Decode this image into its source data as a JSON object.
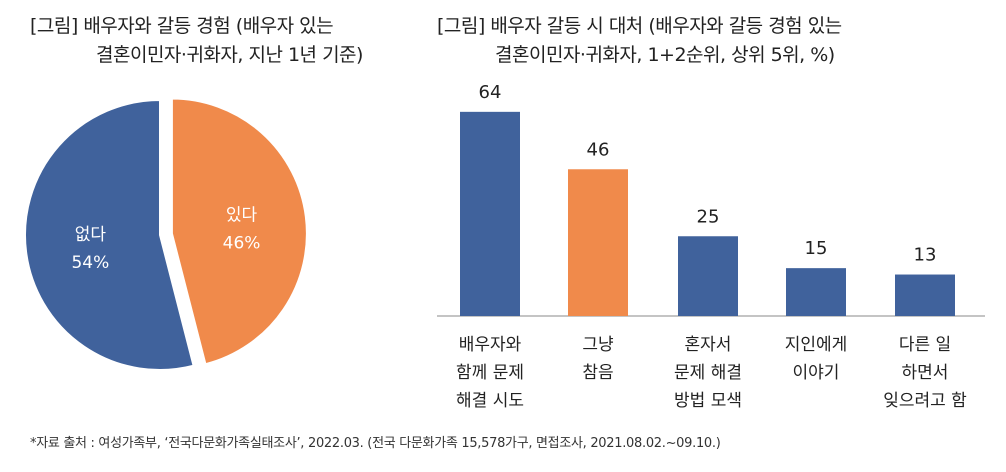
{
  "colors": {
    "blue": "#40629c",
    "orange": "#f08a4b",
    "axis": "#888888"
  },
  "chart_data": [
    {
      "type": "pie",
      "title_lines": [
        "[그림] 배우자와 갈등 경험 (배우자 있는",
        "결혼이민자·귀화자, 지난 1년 기준)"
      ],
      "slices": [
        {
          "label": "있다",
          "value": 46,
          "value_label": "46%",
          "color": "#f08a4b",
          "exploded": true
        },
        {
          "label": "없다",
          "value": 54,
          "value_label": "54%",
          "color": "#40629c"
        }
      ]
    },
    {
      "type": "bar",
      "title_lines": [
        "[그림] 배우자 갈등 시 대처 (배우자와 갈등 경험 있는",
        "결혼이민자·귀화자, 1+2순위, 상위 5위, %)"
      ],
      "categories": [
        [
          "배우자와",
          "함께 문제",
          "해결 시도"
        ],
        [
          "그냥",
          "참음"
        ],
        [
          "혼자서",
          "문제 해결",
          "방법 모색"
        ],
        [
          "지인에게",
          "이야기"
        ],
        [
          "다른 일",
          "하면서",
          "잊으려고 함"
        ]
      ],
      "values": [
        64,
        46,
        25,
        15,
        13
      ],
      "bar_colors": [
        "#40629c",
        "#f08a4b",
        "#40629c",
        "#40629c",
        "#40629c"
      ],
      "ylim": [
        0,
        70
      ],
      "grid": false
    }
  ],
  "footnote": "*자료 출처 : 여성가족부, ‘전국다문화가족실태조사’, 2022.03. (전국 다문화가족 15,578가구, 면접조사, 2021.08.02.~09.10.)"
}
